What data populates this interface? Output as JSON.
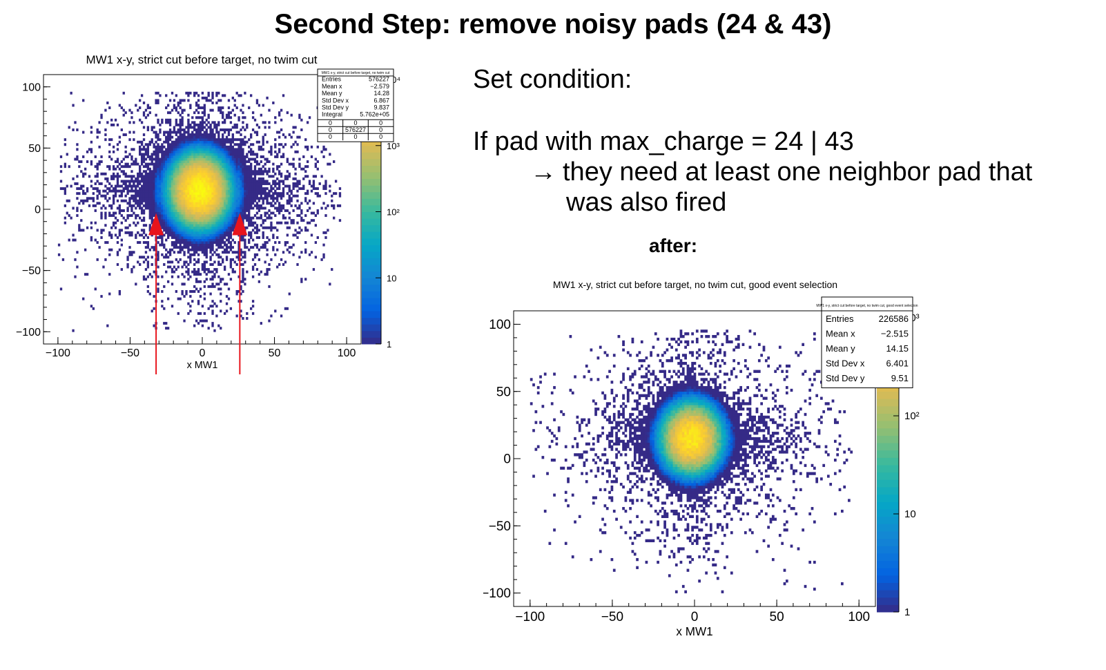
{
  "slide": {
    "title": "Second Step: remove noisy pads (24 & 43)",
    "condition_heading": "Set condition:",
    "condition_line1": "If pad with max_charge = 24 | 43",
    "condition_arrow": "→",
    "condition_line2": "they need at least one neighbor pad that",
    "condition_line3": "was also fired",
    "after_label": "after:"
  },
  "colors": {
    "arrow": "#e8141c",
    "palette": [
      "#352a87",
      "#0363e1",
      "#1485d4",
      "#06a7c6",
      "#38b99e",
      "#92bf73",
      "#d9ba56",
      "#fcce2e",
      "#f9fb0e"
    ]
  },
  "chart_data": [
    {
      "type": "heatmap",
      "title": "MW1 x-y, strict cut before target, no twim cut",
      "xlabel": "x MW1",
      "ylabel": "",
      "xlim": [
        -110,
        110
      ],
      "ylim": [
        -110,
        110
      ],
      "xticks": [
        "−100",
        "−50",
        "0",
        "50",
        "100"
      ],
      "yticks": [
        "100",
        "50",
        "0",
        "−50",
        "−100"
      ],
      "colorbar": {
        "scale": "log",
        "range": [
          1,
          10000
        ],
        "labels": [
          "1",
          "10",
          "10²",
          "10³",
          "10⁴"
        ]
      },
      "peak": {
        "x": -2.6,
        "y": 14.3
      },
      "noisy_columns_x": [
        -32,
        26
      ],
      "annotations": [
        "red arrow at x=-32",
        "red arrow at x=26"
      ],
      "stats": {
        "header": "MW1 x-y, strict cut before target, no twim cut",
        "rows": [
          [
            "Entries",
            "576227"
          ],
          [
            "Mean x",
            "−2.579"
          ],
          [
            "Mean y",
            "14.28"
          ],
          [
            "Std Dev x",
            "6.867"
          ],
          [
            "Std Dev y",
            "9.837"
          ],
          [
            "Integral",
            "5.762e+05"
          ]
        ],
        "grid": [
          [
            "0",
            "0",
            "0"
          ],
          [
            "0",
            "576227",
            "0"
          ],
          [
            "0",
            "0",
            "0"
          ]
        ]
      }
    },
    {
      "type": "heatmap",
      "title": "MW1 x-y, strict cut before target, no twim cut, good event selection",
      "xlabel": "x MW1",
      "ylabel": "",
      "xlim": [
        -110,
        110
      ],
      "ylim": [
        -110,
        110
      ],
      "xticks": [
        "−100",
        "−50",
        "0",
        "50",
        "100"
      ],
      "yticks": [
        "100",
        "50",
        "0",
        "−50",
        "−100"
      ],
      "colorbar": {
        "scale": "log",
        "range": [
          1,
          1000
        ],
        "labels": [
          "1",
          "10",
          "10²",
          "10³"
        ]
      },
      "peak": {
        "x": -2.5,
        "y": 14.2
      },
      "stats": {
        "header": "MW1 x-y, strict cut before target, no twim cut, good event selection",
        "rows": [
          [
            "Entries",
            "226586"
          ],
          [
            "Mean x",
            "−2.515"
          ],
          [
            "Mean y",
            "14.15"
          ],
          [
            "Std Dev x",
            "6.401"
          ],
          [
            "Std Dev y",
            "9.51"
          ]
        ]
      }
    }
  ]
}
